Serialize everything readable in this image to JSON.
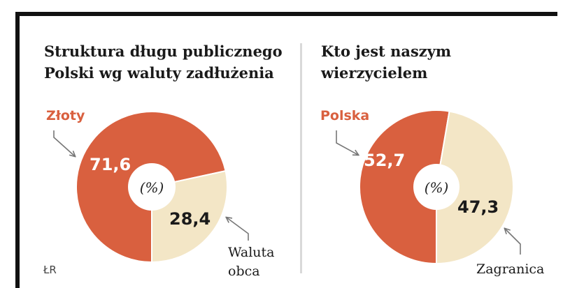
{
  "source_label": "ŁR",
  "chart_data": [
    {
      "type": "pie",
      "title_lines": [
        "Struktura długu publicznego",
        "Polski wg waluty zadłużenia"
      ],
      "center_label": "(%)",
      "slices": [
        {
          "label": "Złoty",
          "value": 71.6,
          "value_text": "71,6",
          "color": "#d9603f"
        },
        {
          "label_lines": [
            "Waluta",
            "obca"
          ],
          "value": 28.4,
          "value_text": "28,4",
          "color": "#f3e6c6"
        }
      ]
    },
    {
      "type": "pie",
      "title_lines": [
        "Kto jest naszym",
        "wierzycielem"
      ],
      "center_label": "(%)",
      "slices": [
        {
          "label": "Polska",
          "value": 52.7,
          "value_text": "52,7",
          "color": "#d9603f"
        },
        {
          "label": "Zagranica",
          "value": 47.3,
          "value_text": "47,3",
          "color": "#f3e6c6"
        }
      ]
    }
  ]
}
